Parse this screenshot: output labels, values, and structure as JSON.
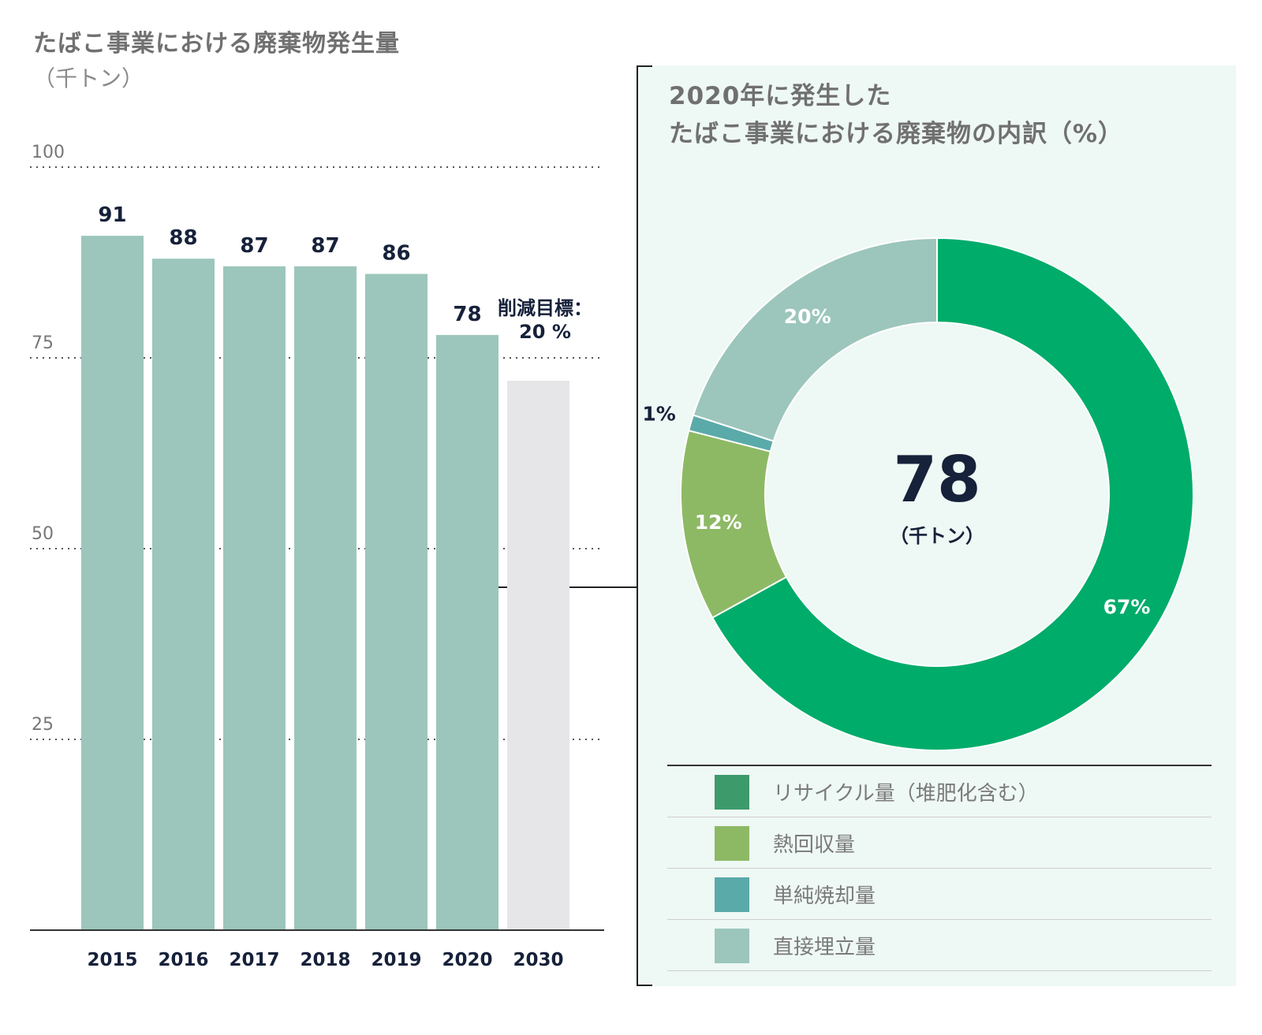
{
  "header": {
    "title": "たばこ事業における廃棄物発生量",
    "unit": "（千トン）"
  },
  "target_label": {
    "line1": "削減目標：",
    "line2": "20 %"
  },
  "panel": {
    "title_line1": "2020年に発生した",
    "title_line2": "たばこ事業における廃棄物の内訳（%）",
    "center_value": "78",
    "center_unit": "（千トン）"
  },
  "legend": {
    "items": [
      {
        "label": "リサイクル量（堆肥化含む）",
        "color": "#3d9a6b"
      },
      {
        "label": "熱回収量",
        "color": "#8db965"
      },
      {
        "label": "単純焼却量",
        "color": "#5aaaa9"
      },
      {
        "label": "直接埋立量",
        "color": "#9cc6bb"
      }
    ]
  },
  "chart_data": [
    {
      "type": "bar",
      "title": "たばこ事業における廃棄物発生量",
      "ylabel": "（千トン）",
      "categories": [
        "2015",
        "2016",
        "2017",
        "2018",
        "2019",
        "2020",
        "2030"
      ],
      "values": [
        91,
        88,
        87,
        87,
        86,
        78,
        72
      ],
      "labels": [
        "91",
        "88",
        "87",
        "87",
        "86",
        "78",
        ""
      ],
      "yticks": [
        25,
        50,
        75,
        100
      ],
      "ylim": [
        0,
        100
      ],
      "grid": true,
      "colors": {
        "actual": "#9cc6bb",
        "target": "#e6e6e8"
      }
    },
    {
      "type": "pie",
      "title": "2020年に発生したたばこ事業における廃棄物の内訳（%）",
      "total": 78,
      "slices": [
        {
          "name": "リサイクル量（堆肥化含む）",
          "value": 67,
          "label": "67%",
          "color": "#00ac6a"
        },
        {
          "name": "熱回収量",
          "value": 12,
          "label": "12%",
          "color": "#8db965"
        },
        {
          "name": "単純焼却量",
          "value": 1,
          "label": "1%",
          "color": "#5aaaa9"
        },
        {
          "name": "直接埋立量",
          "value": 20,
          "label": "20%",
          "color": "#9cc6bb"
        }
      ]
    }
  ]
}
